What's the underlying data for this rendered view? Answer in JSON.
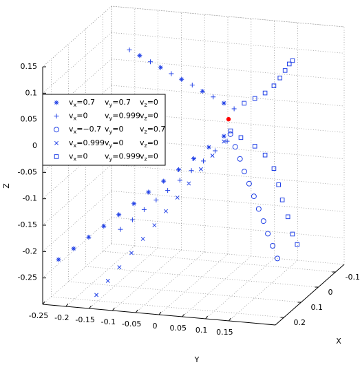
{
  "chart_data": {
    "type": "scatter3d",
    "xlabel": "X",
    "ylabel": "Y",
    "zlabel": "Z",
    "xlim": [
      -0.15,
      0.25
    ],
    "ylim": [
      -0.25,
      0.25
    ],
    "zlim": [
      -0.3,
      0.15
    ],
    "xticks": [
      -0.1,
      0,
      0.1,
      0.2
    ],
    "yticks": [
      -0.25,
      -0.2,
      -0.15,
      -0.1,
      -0.05,
      0,
      0.05,
      0.1,
      0.15
    ],
    "zticks": [
      -0.25,
      -0.2,
      -0.15,
      -0.1,
      -0.05,
      0,
      0.05,
      0.1,
      0.15
    ],
    "grid": true,
    "legend": "northwest",
    "series": [
      {
        "name": [
          "vx=0.7",
          "vy=0.7",
          "vz=0"
        ],
        "marker": "asterisk",
        "color": "#1f3fe6",
        "x": [
          0,
          0.02,
          0.04,
          0.06,
          0.08,
          0.1,
          0.12,
          0.14,
          0.16,
          0.18,
          0.2,
          0.22,
          -0.1,
          -0.1,
          -0.1,
          -0.1,
          -0.1
        ],
        "y": [
          0.047,
          0.022,
          -0.003,
          -0.028,
          -0.053,
          -0.078,
          -0.102,
          -0.127,
          -0.152,
          -0.177,
          -0.202,
          -0.227,
          -0.171,
          -0.126,
          -0.081,
          -0.036,
          0.01
        ],
        "z": [
          -0.03,
          -0.047,
          -0.065,
          -0.082,
          -0.1,
          -0.117,
          -0.135,
          -0.152,
          -0.17,
          -0.187,
          -0.205,
          -0.222,
          0.077,
          0.058,
          0.039,
          0.02,
          0.001
        ]
      },
      {
        "name": [
          "vx=0",
          "vy=0.999",
          "vz=0"
        ],
        "marker": "plus",
        "color": "#1f3fe6",
        "x": [
          0,
          0.013,
          0.027,
          0.04,
          0.053,
          0.067,
          0.08,
          0.093,
          0.107,
          0.12,
          -0.1,
          -0.1,
          -0.1,
          -0.1,
          -0.1,
          -0.1
        ],
        "y": [
          0.054,
          0.033,
          0.013,
          -0.008,
          -0.028,
          -0.049,
          -0.069,
          -0.09,
          -0.11,
          -0.131,
          -0.193,
          -0.148,
          -0.103,
          -0.058,
          -0.013,
          0.032
        ],
        "z": [
          -0.039,
          -0.055,
          -0.072,
          -0.088,
          -0.104,
          -0.121,
          -0.137,
          -0.153,
          -0.17,
          -0.186,
          0.086,
          0.067,
          0.048,
          0.03,
          0.011,
          -0.008
        ]
      },
      {
        "name": [
          "vx=−0.7",
          "vy=0",
          "vz=0.7"
        ],
        "marker": "circle",
        "color": "#1f3fe6",
        "x": [
          0,
          0.01,
          0.02,
          0.03,
          0.04,
          0.05,
          0.06,
          0.07,
          0.08,
          0.09,
          0.1
        ],
        "y": [
          0.061,
          0.075,
          0.089,
          0.102,
          0.116,
          0.13,
          0.144,
          0.158,
          0.171,
          0.185,
          0.199
        ],
        "z": [
          -0.025,
          -0.045,
          -0.064,
          -0.084,
          -0.103,
          -0.123,
          -0.143,
          -0.162,
          -0.182,
          -0.201,
          -0.221
        ]
      },
      {
        "name": [
          "vx=0.999",
          "vy=0",
          "vz=0"
        ],
        "marker": "cross",
        "color": "#1f3fe6",
        "x": [
          0,
          0.018,
          0.036,
          0.055,
          0.073,
          0.091,
          0.109,
          0.127,
          0.145,
          0.164,
          0.182,
          0.2
        ],
        "y": [
          0.047,
          0.029,
          0.011,
          -0.008,
          -0.026,
          -0.044,
          -0.062,
          -0.08,
          -0.098,
          -0.117,
          -0.135,
          -0.153
        ],
        "z": [
          -0.04,
          -0.063,
          -0.085,
          -0.108,
          -0.131,
          -0.153,
          -0.176,
          -0.198,
          -0.221,
          -0.244,
          -0.266,
          -0.289
        ]
      },
      {
        "name": [
          "vx=0",
          "vy=0.999",
          "vz=0"
        ],
        "marker": "square",
        "color": "#1f3fe6",
        "x": [
          -0.05,
          -0.05,
          -0.05,
          -0.05,
          -0.05,
          -0.05,
          -0.05,
          -0.05,
          0.05,
          0.05,
          0.05,
          0.05,
          0.05,
          0.05,
          0.05,
          0.05,
          0.05,
          0.05
        ],
        "y": [
          0.072,
          0.095,
          0.117,
          0.136,
          0.149,
          0.16,
          0.169,
          0.176,
          0.08,
          0.102,
          0.132,
          0.154,
          0.173,
          0.183,
          0.191,
          0.203,
          0.213,
          0.223
        ],
        "z": [
          0.02,
          0.031,
          0.043,
          0.058,
          0.074,
          0.089,
          0.102,
          0.109,
          -0.003,
          -0.014,
          -0.028,
          -0.043,
          -0.067,
          -0.097,
          -0.125,
          -0.156,
          -0.188,
          -0.207
        ]
      }
    ],
    "point": {
      "x": 0,
      "y": 0.057,
      "z": 0.003,
      "color": "#ff0000"
    }
  }
}
